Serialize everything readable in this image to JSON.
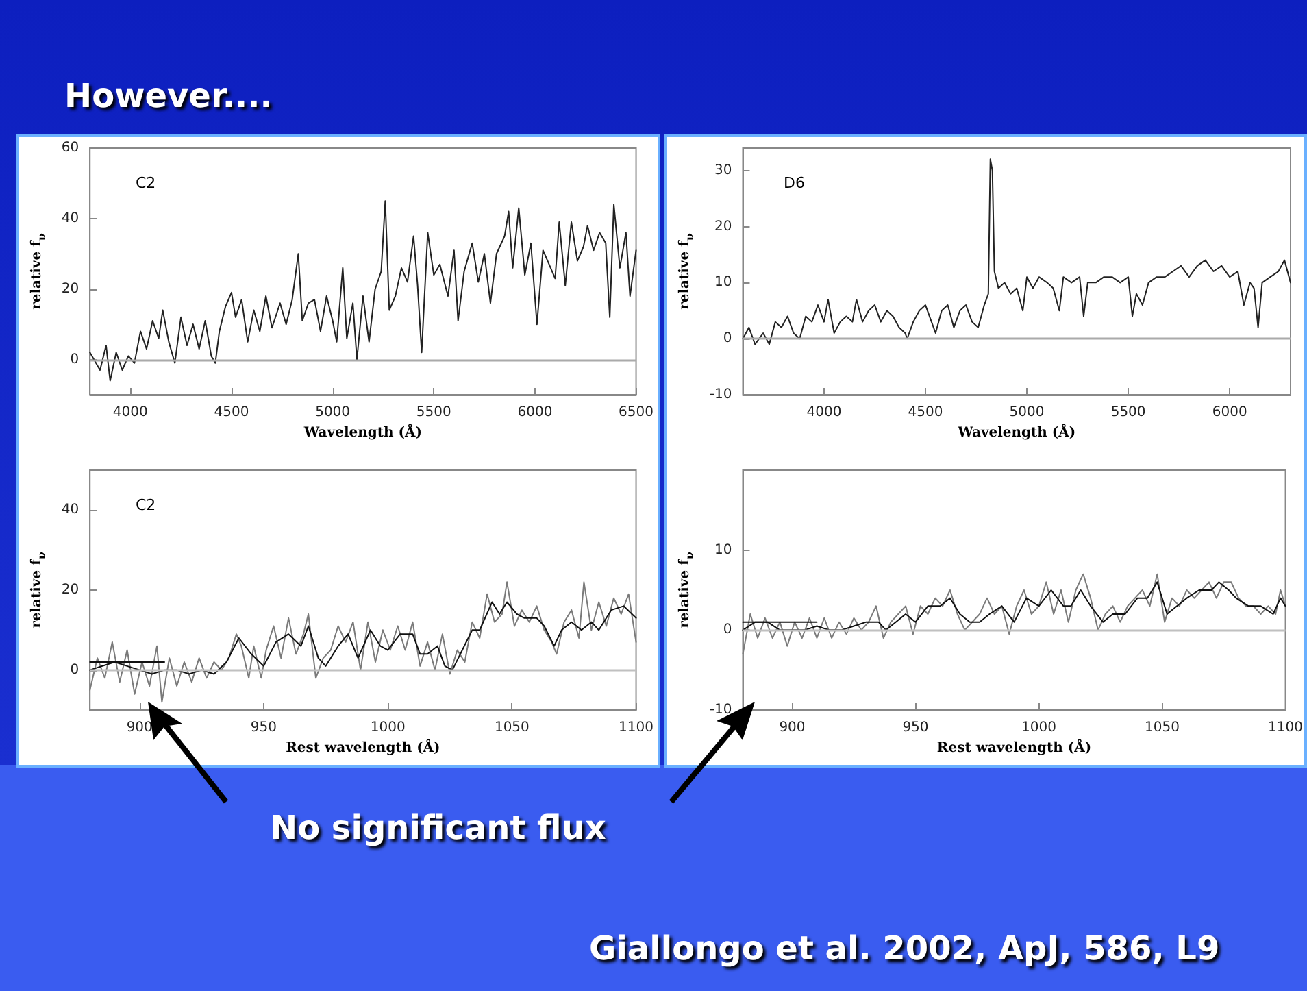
{
  "chart_data": [
    {
      "type": "other",
      "title": "However...."
    },
    {
      "type": "line",
      "xlabel": "Wavelength (Å)",
      "ylabel": "relative f$_{ν}$",
      "annotations": [
        "C2"
      ],
      "xlim": [
        3800,
        6500
      ],
      "xticks": [
        4000,
        4500,
        5000,
        5500,
        6000,
        6500
      ],
      "ylim": [
        -10,
        60
      ],
      "yticks": [
        0,
        20,
        40,
        60
      ],
      "ref_lines": [
        {
          "axis": "y",
          "value": 0,
          "color": "#aaaaaa"
        }
      ],
      "series": [
        {
          "color": "#222222",
          "x": [
            3800,
            3850,
            3880,
            3900,
            3930,
            3960,
            3990,
            4020,
            4050,
            4080,
            4110,
            4140,
            4160,
            4190,
            4220,
            4250,
            4280,
            4310,
            4340,
            4370,
            4400,
            4420,
            4440,
            4470,
            4500,
            4520,
            4550,
            4580,
            4610,
            4640,
            4670,
            4700,
            4740,
            4770,
            4800,
            4830,
            4850,
            4880,
            4910,
            4940,
            4970,
            5000,
            5020,
            5050,
            5070,
            5100,
            5120,
            5150,
            5180,
            5210,
            5240,
            5260,
            5280,
            5310,
            5340,
            5370,
            5400,
            5420,
            5440,
            5470,
            5500,
            5530,
            5570,
            5600,
            5620,
            5650,
            5690,
            5720,
            5750,
            5780,
            5810,
            5850,
            5870,
            5890,
            5920,
            5950,
            5980,
            6010,
            6040,
            6070,
            6100,
            6120,
            6150,
            6180,
            6210,
            6240,
            6260,
            6290,
            6320,
            6350,
            6370,
            6390,
            6420,
            6450,
            6470,
            6500
          ],
          "values": [
            2,
            -3,
            4,
            -6,
            2,
            -3,
            1,
            -1,
            8,
            3,
            11,
            6,
            14,
            5,
            -1,
            12,
            4,
            10,
            3,
            11,
            1,
            -1,
            8,
            15,
            19,
            12,
            17,
            5,
            14,
            8,
            18,
            9,
            16,
            10,
            17,
            30,
            11,
            16,
            17,
            8,
            18,
            11,
            5,
            26,
            6,
            16,
            0,
            18,
            5,
            20,
            25,
            45,
            14,
            18,
            26,
            22,
            35,
            21,
            2,
            36,
            24,
            27,
            18,
            31,
            11,
            25,
            33,
            22,
            30,
            16,
            30,
            35,
            42,
            26,
            43,
            24,
            33,
            10,
            31,
            27,
            23,
            39,
            21,
            39,
            28,
            32,
            38,
            31,
            36,
            33,
            12,
            44,
            26,
            36,
            18,
            31
          ]
        }
      ]
    },
    {
      "type": "line",
      "xlabel": "Wavelength (Å)",
      "ylabel": "relative f$_{ν}$",
      "annotations": [
        "D6"
      ],
      "xlim": [
        3600,
        6300
      ],
      "xticks": [
        4000,
        4500,
        5000,
        5500,
        6000
      ],
      "ylim": [
        -10,
        34
      ],
      "yticks": [
        -10,
        0,
        10,
        20,
        30
      ],
      "ref_lines": [
        {
          "axis": "y",
          "value": 0,
          "color": "#aaaaaa"
        }
      ],
      "series": [
        {
          "color": "#222222",
          "x": [
            3600,
            3630,
            3660,
            3700,
            3730,
            3760,
            3790,
            3820,
            3850,
            3880,
            3910,
            3940,
            3970,
            4000,
            4020,
            4050,
            4080,
            4110,
            4140,
            4160,
            4190,
            4220,
            4250,
            4280,
            4310,
            4340,
            4370,
            4400,
            4410,
            4440,
            4470,
            4500,
            4530,
            4550,
            4580,
            4610,
            4640,
            4670,
            4700,
            4730,
            4760,
            4790,
            4810,
            4820,
            4830,
            4840,
            4860,
            4890,
            4920,
            4950,
            4980,
            5000,
            5030,
            5060,
            5100,
            5130,
            5160,
            5180,
            5220,
            5260,
            5280,
            5300,
            5340,
            5380,
            5420,
            5460,
            5500,
            5520,
            5540,
            5570,
            5600,
            5640,
            5680,
            5720,
            5760,
            5800,
            5840,
            5880,
            5920,
            5960,
            6000,
            6040,
            6070,
            6100,
            6120,
            6140,
            6160,
            6200,
            6240,
            6270,
            6300
          ],
          "values": [
            0,
            2,
            -1,
            1,
            -1,
            3,
            2,
            4,
            1,
            0,
            4,
            3,
            6,
            3,
            7,
            1,
            3,
            4,
            3,
            7,
            3,
            5,
            6,
            3,
            5,
            4,
            2,
            1,
            0,
            3,
            5,
            6,
            3,
            1,
            5,
            6,
            2,
            5,
            6,
            3,
            2,
            6,
            8,
            32,
            30,
            12,
            9,
            10,
            8,
            9,
            5,
            11,
            9,
            11,
            10,
            9,
            5,
            11,
            10,
            11,
            4,
            10,
            10,
            11,
            11,
            10,
            11,
            4,
            8,
            6,
            10,
            11,
            11,
            12,
            13,
            11,
            13,
            14,
            12,
            13,
            11,
            12,
            6,
            10,
            9,
            2,
            10,
            11,
            12,
            14,
            10
          ]
        }
      ]
    },
    {
      "type": "line",
      "xlabel": "Rest wavelength (Å)",
      "ylabel": "relative f$_{ν}$",
      "annotations": [
        "C2"
      ],
      "xlim": [
        880,
        1100
      ],
      "xticks": [
        900,
        950,
        1000,
        1050,
        1100
      ],
      "ylim": [
        -10,
        50
      ],
      "yticks": [
        0,
        20,
        40
      ],
      "ref_lines": [
        {
          "axis": "y",
          "value": 0,
          "color": "#c0c0c0"
        }
      ],
      "series": [
        {
          "color": "#7a7a7a",
          "x": [
            880,
            883,
            886,
            889,
            892,
            895,
            898,
            901,
            904,
            907,
            909,
            912,
            915,
            918,
            921,
            924,
            927,
            930,
            933,
            936,
            939,
            941,
            944,
            946,
            949,
            951,
            954,
            957,
            960,
            963,
            966,
            968,
            971,
            974,
            977,
            980,
            983,
            986,
            989,
            992,
            995,
            998,
            1001,
            1004,
            1007,
            1010,
            1013,
            1016,
            1019,
            1022,
            1025,
            1028,
            1031,
            1034,
            1037,
            1040,
            1043,
            1046,
            1048,
            1051,
            1054,
            1057,
            1060,
            1063,
            1066,
            1068,
            1071,
            1074,
            1077,
            1079,
            1082,
            1085,
            1088,
            1091,
            1094,
            1097,
            1100
          ],
          "values": [
            -5,
            3,
            -2,
            7,
            -3,
            5,
            -6,
            2,
            -4,
            6,
            -8,
            3,
            -4,
            2,
            -3,
            3,
            -2,
            2,
            0,
            3,
            9,
            6,
            -2,
            6,
            -2,
            5,
            11,
            3,
            13,
            4,
            9,
            14,
            -2,
            3,
            5,
            11,
            7,
            12,
            0,
            12,
            2,
            10,
            5,
            11,
            5,
            12,
            1,
            7,
            0,
            9,
            -1,
            5,
            2,
            12,
            8,
            19,
            12,
            14,
            22,
            11,
            15,
            12,
            16,
            10,
            7,
            4,
            12,
            15,
            8,
            22,
            10,
            17,
            11,
            18,
            14,
            19,
            7
          ]
        },
        {
          "color": "#111111",
          "x": [
            880,
            890,
            895,
            900,
            905,
            910,
            915,
            920,
            925,
            930,
            935,
            940,
            945,
            950,
            955,
            960,
            965,
            968,
            972,
            975,
            980,
            984,
            988,
            993,
            997,
            1000,
            1005,
            1010,
            1013,
            1016,
            1020,
            1023,
            1026,
            1030,
            1034,
            1037,
            1042,
            1045,
            1048,
            1052,
            1055,
            1060,
            1063,
            1067,
            1070,
            1074,
            1078,
            1082,
            1085,
            1090,
            1095,
            1100
          ],
          "values": [
            0,
            2,
            1,
            0,
            -1,
            0,
            0,
            -1,
            0,
            -1,
            2,
            8,
            4,
            1,
            7,
            9,
            6,
            11,
            3,
            1,
            6,
            9,
            3,
            10,
            6,
            5,
            9,
            9,
            4,
            4,
            6,
            1,
            0,
            5,
            10,
            10,
            17,
            14,
            17,
            14,
            13,
            13,
            11,
            6,
            10,
            12,
            10,
            12,
            10,
            15,
            16,
            13
          ]
        },
        {
          "color": "#111111",
          "x": [
            880,
            910
          ],
          "values": [
            2,
            2
          ]
        }
      ]
    },
    {
      "type": "line",
      "xlabel": "Rest wavelength (Å)",
      "ylabel": "relative f$_{ν}$",
      "xlim": [
        880,
        1100
      ],
      "xticks": [
        900,
        950,
        1000,
        1050,
        1100
      ],
      "ylim": [
        -10,
        20
      ],
      "yticks": [
        -10,
        0,
        10
      ],
      "ref_lines": [
        {
          "axis": "y",
          "value": 0,
          "color": "#c0c0c0"
        }
      ],
      "series": [
        {
          "color": "#7a7a7a",
          "x": [
            880,
            883,
            886,
            889,
            892,
            895,
            898,
            901,
            904,
            907,
            910,
            913,
            916,
            919,
            922,
            925,
            928,
            931,
            934,
            937,
            940,
            943,
            946,
            949,
            952,
            955,
            958,
            961,
            964,
            967,
            970,
            973,
            976,
            979,
            982,
            985,
            988,
            991,
            994,
            997,
            1000,
            1003,
            1006,
            1009,
            1012,
            1015,
            1018,
            1021,
            1024,
            1027,
            1030,
            1033,
            1036,
            1039,
            1042,
            1045,
            1048,
            1051,
            1054,
            1057,
            1060,
            1063,
            1066,
            1069,
            1072,
            1075,
            1078,
            1081,
            1084,
            1087,
            1090,
            1093,
            1096,
            1098,
            1100
          ],
          "values": [
            -3,
            2,
            -1,
            1.5,
            -1,
            1,
            -2,
            1,
            -1,
            1.5,
            -1,
            1.5,
            -1,
            1,
            -0.5,
            1.5,
            0,
            1,
            3,
            -1,
            1,
            2,
            3,
            -0.5,
            3,
            2,
            4,
            3,
            5,
            2,
            0,
            1,
            2,
            4,
            2,
            3,
            -0.5,
            3,
            5,
            2,
            3,
            6,
            2,
            5,
            1,
            5,
            7,
            4,
            0,
            2,
            3,
            1,
            3,
            4,
            5,
            3,
            7,
            1,
            4,
            3,
            5,
            4,
            5,
            6,
            4,
            6,
            6,
            4,
            3,
            3,
            2,
            3,
            2,
            5,
            3
          ]
        },
        {
          "color": "#111111",
          "x": [
            880,
            885,
            890,
            895,
            900,
            905,
            910,
            915,
            920,
            925,
            930,
            935,
            938,
            942,
            946,
            950,
            955,
            960,
            964,
            968,
            972,
            976,
            980,
            985,
            990,
            995,
            1000,
            1005,
            1010,
            1013,
            1017,
            1021,
            1026,
            1030,
            1035,
            1040,
            1044,
            1048,
            1052,
            1056,
            1060,
            1065,
            1070,
            1073,
            1077,
            1080,
            1085,
            1090,
            1095,
            1098,
            1100
          ],
          "values": [
            0,
            1,
            1,
            0,
            0,
            0,
            0.5,
            0,
            0,
            0.5,
            1,
            1,
            0,
            1,
            2,
            1,
            3,
            3,
            4,
            2,
            1,
            1,
            2,
            3,
            1,
            4,
            3,
            5,
            3,
            3,
            5,
            3,
            1,
            2,
            2,
            4,
            4,
            6,
            2,
            3,
            4,
            5,
            5,
            6,
            5,
            4,
            3,
            3,
            2,
            4,
            3
          ]
        },
        {
          "color": "#111111",
          "x": [
            880,
            910
          ],
          "values": [
            1,
            1
          ]
        }
      ]
    },
    {
      "type": "other",
      "annotations": [
        "No significant flux",
        "Giallongo et al. 2002, ApJ, 586, L9"
      ]
    }
  ]
}
